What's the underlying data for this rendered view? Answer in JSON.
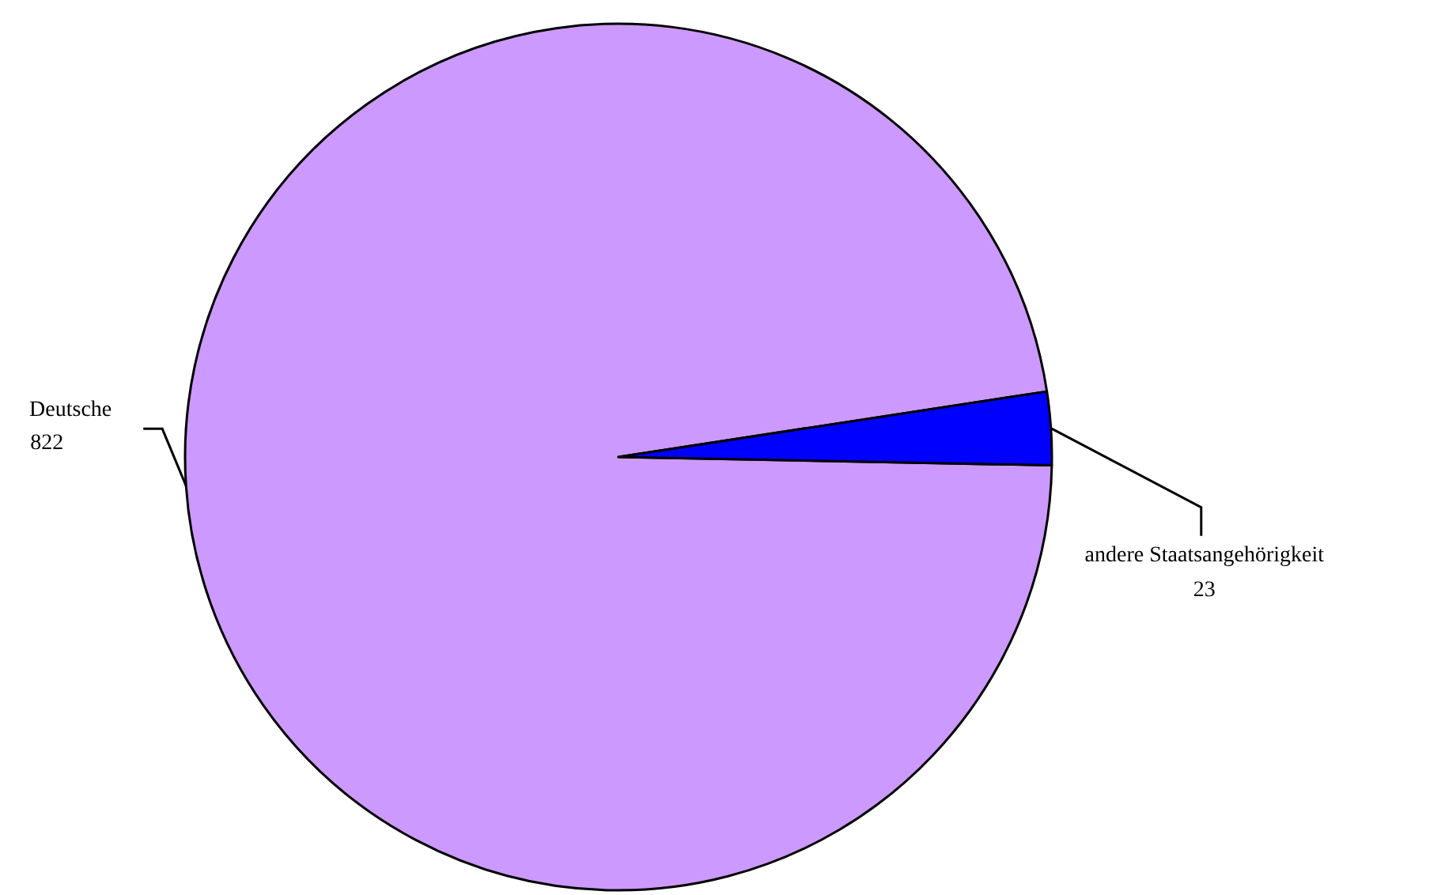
{
  "chart_data": {
    "type": "pie",
    "categories": [
      "Deutsche",
      "andere Staatsangehörigkeit"
    ],
    "values": [
      822,
      23
    ],
    "colors": [
      "#cc99ff",
      "#0000ff"
    ],
    "data_labels": true
  }
}
